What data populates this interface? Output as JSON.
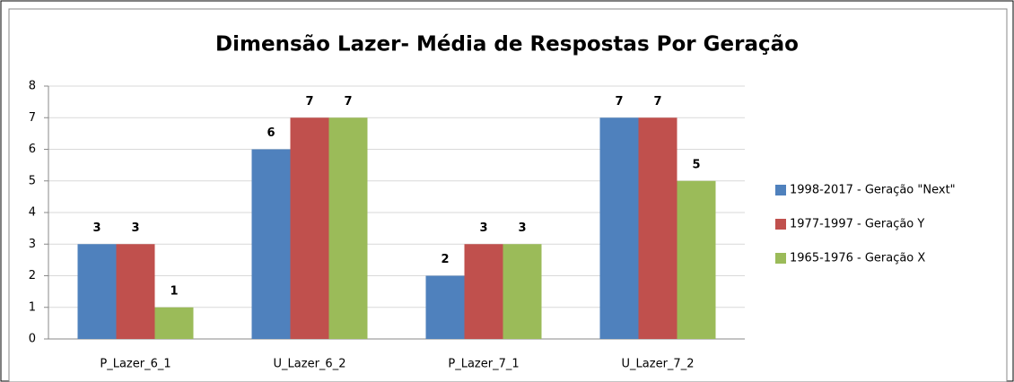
{
  "chart_data": {
    "type": "bar",
    "title": "Dimensão Lazer- Média de Respostas Por Geração",
    "categories": [
      "P_Lazer_6_1",
      "U_Lazer_6_2",
      "P_Lazer_7_1",
      "U_Lazer_7_2"
    ],
    "series": [
      {
        "name": "1998-2017 - Geração \"Next\"",
        "color": "#4f81bd",
        "values": [
          3,
          6,
          2,
          7
        ]
      },
      {
        "name": "1977-1997 - Geração Y",
        "color": "#c0504d",
        "values": [
          3,
          7,
          3,
          7
        ]
      },
      {
        "name": "1965-1976 - Geração X",
        "color": "#9bbb59",
        "values": [
          1,
          7,
          3,
          5
        ]
      }
    ],
    "ylim": [
      0,
      8
    ],
    "yticks": [
      0,
      1,
      2,
      3,
      4,
      5,
      6,
      7,
      8
    ],
    "grid": true,
    "legend": "right"
  }
}
